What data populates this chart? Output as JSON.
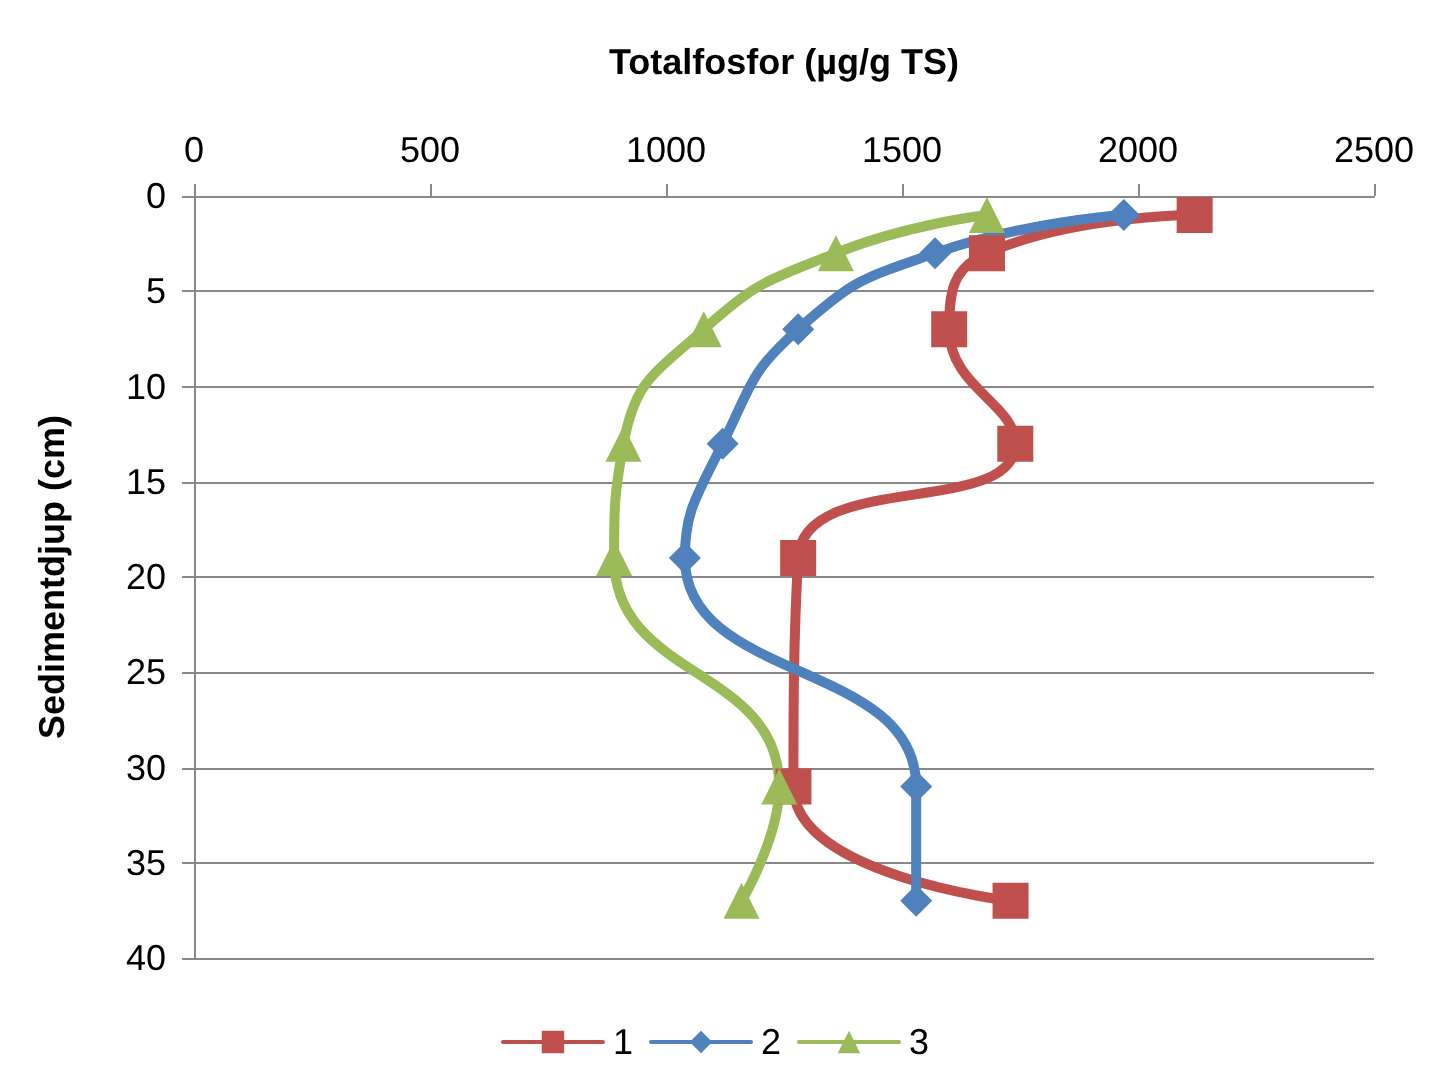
{
  "chart_data": {
    "type": "line",
    "xlabel": "Totalfosfor (µg/g TS)",
    "ylabel": "Sedimentdjup (cm)",
    "xlim": [
      0,
      2500
    ],
    "xticks": [
      0,
      500,
      1000,
      1500,
      2000,
      2500
    ],
    "ylim": [
      40,
      0
    ],
    "yticks": [
      0,
      5,
      10,
      15,
      20,
      25,
      30,
      35,
      40
    ],
    "grid": "y",
    "legend": "bottom",
    "line_style": "solid",
    "series": [
      {
        "name": "1",
        "color": "#c0504d",
        "marker": "square",
        "x": [
          2120,
          1680,
          1600,
          1740,
          1280,
          1270,
          1730
        ],
        "values": [
          1,
          3,
          7,
          13,
          19,
          31,
          37
        ]
      },
      {
        "name": "2",
        "color": "#4f81bd",
        "marker": "diamond",
        "x": [
          1970,
          1570,
          1280,
          1120,
          1040,
          1530,
          1530
        ],
        "values": [
          1,
          3,
          7,
          13,
          19,
          31,
          37
        ]
      },
      {
        "name": "3",
        "color": "#9bbb59",
        "marker": "triangle",
        "x": [
          1680,
          1360,
          1080,
          910,
          890,
          1240,
          1160
        ],
        "values": [
          1,
          3,
          7,
          13,
          19,
          31,
          37
        ]
      }
    ]
  }
}
